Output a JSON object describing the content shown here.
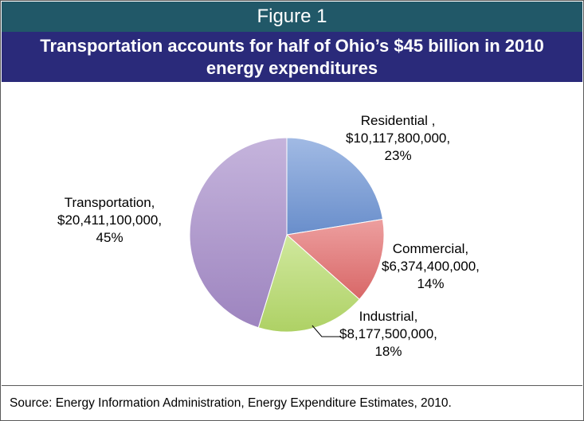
{
  "figure_label": "Figure 1",
  "title": "Transportation accounts for half of Ohio’s $45 billion in 2010 energy expenditures",
  "source": "Source: Energy Information Administration, Energy Expenditure Estimates, 2010.",
  "colors": {
    "figure_band": "#215868",
    "title_band": "#2a2a7a",
    "residential": "#6f95d6",
    "commercial": "#e36c6c",
    "industrial": "#b7dc6a",
    "transportation": "#a58bc9"
  },
  "chart_data": {
    "type": "pie",
    "title": "Transportation accounts for half of Ohio’s $45 billion in 2010 energy expenditures",
    "slices": [
      {
        "name": "Residential",
        "value": 10117800000,
        "percent": 23,
        "label_lines": [
          "Residential ,",
          "$10,117,800,000,",
          "23%"
        ]
      },
      {
        "name": "Commercial",
        "value": 6374400000,
        "percent": 14,
        "label_lines": [
          "Commercial,",
          "$6,374,400,000,",
          "14%"
        ]
      },
      {
        "name": "Industrial",
        "value": 8177500000,
        "percent": 18,
        "label_lines": [
          "Industrial,",
          "$8,177,500,000,",
          "18%"
        ]
      },
      {
        "name": "Transportation",
        "value": 20411100000,
        "percent": 45,
        "label_lines": [
          "Transportation,",
          "$20,411,100,000,",
          "45%"
        ]
      }
    ],
    "legend": "none",
    "data_labels": "outside"
  }
}
